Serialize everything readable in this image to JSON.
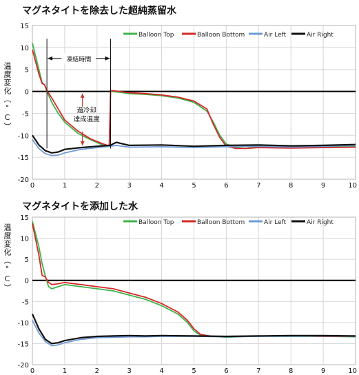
{
  "chart_data": [
    {
      "type": "line",
      "title": "マグネタイトを除去した超純蒸留水",
      "ylabel": "温度変化（°C）",
      "xlabel": "",
      "xlim": [
        0,
        10
      ],
      "ylim": [
        -20,
        15
      ],
      "xticks": [
        "0",
        "1",
        "2",
        "3",
        "4",
        "5",
        "6",
        "7",
        "8",
        "9",
        "10"
      ],
      "yticks": [
        "15",
        "10",
        "5",
        "0",
        "-5",
        "-10",
        "-15",
        "-20"
      ],
      "grid": true,
      "legend_position": "top-right",
      "annotations": {
        "freeze_span_label": "凍結時間",
        "supercool_label": "過冷却\n達成温度"
      },
      "series": [
        {
          "name": "Balloon Top",
          "color": "#3cb44b",
          "x": [
            0,
            0.2,
            0.3,
            0.38,
            0.45,
            0.6,
            0.8,
            1.0,
            1.4,
            1.8,
            2.2,
            2.38,
            2.42,
            2.7,
            3.0,
            3.5,
            4.0,
            4.5,
            5.0,
            5.4,
            5.6,
            5.8,
            6.0,
            6.3,
            6.6,
            7.0,
            8.0,
            9.0,
            10.0
          ],
          "y": [
            11,
            5,
            2,
            1.5,
            0,
            -2.5,
            -5,
            -7,
            -9.5,
            -11,
            -12.3,
            -12.5,
            0,
            -0.2,
            -0.5,
            -0.7,
            -1,
            -1.5,
            -2.5,
            -4.5,
            -7,
            -10,
            -12,
            -12.8,
            -13,
            -12.5,
            -12.6,
            -12.7,
            -12.6
          ]
        },
        {
          "name": "Balloon Bottom",
          "color": "#d62728",
          "x": [
            0,
            0.2,
            0.3,
            0.38,
            0.45,
            0.6,
            0.8,
            1.0,
            1.4,
            1.8,
            2.2,
            2.38,
            2.42,
            2.7,
            3.0,
            3.5,
            4.0,
            4.5,
            5.0,
            5.4,
            5.6,
            5.8,
            6.0,
            6.3,
            6.6,
            7.0,
            8.0,
            9.0,
            10.0
          ],
          "y": [
            9.5,
            4,
            1.8,
            1.5,
            0.2,
            -1.5,
            -4,
            -6.5,
            -9,
            -10.8,
            -12,
            -12.4,
            0.2,
            0,
            -0.3,
            -0.5,
            -0.8,
            -1.3,
            -2.2,
            -4,
            -7.5,
            -10.5,
            -12.5,
            -13,
            -13,
            -12.8,
            -12.9,
            -12.8,
            -12.7
          ]
        },
        {
          "name": "Air Left",
          "color": "#6f9ad6",
          "x": [
            0,
            0.2,
            0.4,
            0.6,
            0.8,
            1.0,
            1.5,
            2.0,
            2.4,
            2.6,
            3.0,
            4.0,
            5.0,
            6.0,
            7.0,
            8.0,
            9.0,
            10.0
          ],
          "y": [
            -11,
            -13,
            -14.2,
            -14.6,
            -14.5,
            -14,
            -13.2,
            -12.8,
            -12.5,
            -12.3,
            -12.7,
            -12.6,
            -12.8,
            -12.6,
            -12.5,
            -12.7,
            -12.5,
            -12.3
          ]
        },
        {
          "name": "Air Right",
          "color": "#111111",
          "x": [
            0,
            0.2,
            0.4,
            0.6,
            0.8,
            1.0,
            1.5,
            2.0,
            2.4,
            2.6,
            3.0,
            4.0,
            5.0,
            6.0,
            7.0,
            8.0,
            9.0,
            10.0
          ],
          "y": [
            -10,
            -12.2,
            -13.5,
            -14,
            -13.8,
            -13.2,
            -12.8,
            -12.5,
            -12.3,
            -11.6,
            -12.3,
            -12.2,
            -12.5,
            -12.3,
            -12.2,
            -12.4,
            -12.3,
            -12.1
          ]
        }
      ]
    },
    {
      "type": "line",
      "title": "マグネタイトを添加した水",
      "ylabel": "温度変化（°C）",
      "xlabel": "",
      "xlim": [
        0,
        10
      ],
      "ylim": [
        -20,
        15
      ],
      "xticks": [
        "0",
        "1",
        "2",
        "3",
        "4",
        "5",
        "6",
        "7",
        "8",
        "9",
        "10"
      ],
      "yticks": [
        "15",
        "10",
        "5",
        "0",
        "-5",
        "-10",
        "-15",
        "-20"
      ],
      "grid": true,
      "legend_position": "top-right",
      "series": [
        {
          "name": "Balloon Top",
          "color": "#3cb44b",
          "x": [
            0,
            0.2,
            0.3,
            0.4,
            0.5,
            0.6,
            0.8,
            1.0,
            1.5,
            2.0,
            2.5,
            3.0,
            3.5,
            4.0,
            4.5,
            4.8,
            5.0,
            5.2,
            5.4,
            5.6,
            6.0,
            7.0,
            8.0,
            9.0,
            10.0
          ],
          "y": [
            14,
            8,
            4,
            1,
            -1.5,
            -2,
            -1.5,
            -1,
            -1.5,
            -2,
            -2.5,
            -3.5,
            -4.5,
            -6,
            -8,
            -10,
            -12,
            -13,
            -13.2,
            -13.3,
            -13.5,
            -13.2,
            -13.3,
            -13.3,
            -13.4
          ]
        },
        {
          "name": "Balloon Bottom",
          "color": "#d62728",
          "x": [
            0,
            0.2,
            0.3,
            0.4,
            0.5,
            0.6,
            0.8,
            1.0,
            1.5,
            2.0,
            2.5,
            3.0,
            3.5,
            4.0,
            4.5,
            4.8,
            5.0,
            5.2,
            5.4,
            5.6,
            6.0,
            7.0,
            8.0,
            9.0,
            10.0
          ],
          "y": [
            13.5,
            6,
            1.2,
            0.8,
            -0.5,
            -1,
            -0.8,
            -0.5,
            -1,
            -1.5,
            -2,
            -3,
            -4,
            -5.5,
            -7.5,
            -9.5,
            -11.5,
            -12.8,
            -13.1,
            -13.3,
            -13.4,
            -13.2,
            -13.2,
            -13.3,
            -13.3
          ]
        },
        {
          "name": "Air Left",
          "color": "#6f9ad6",
          "x": [
            0,
            0.2,
            0.4,
            0.6,
            0.8,
            1.0,
            1.5,
            2.0,
            2.5,
            3.0,
            3.5,
            4.0,
            5.0,
            6.0,
            7.0,
            8.0,
            9.0,
            10.0
          ],
          "y": [
            -9.5,
            -12.5,
            -14.5,
            -15.5,
            -15.3,
            -14.8,
            -14,
            -13.6,
            -13.5,
            -13.4,
            -13.4,
            -13.3,
            -13.3,
            -13.4,
            -13.3,
            -13.3,
            -13.2,
            -13.3
          ]
        },
        {
          "name": "Air Right",
          "color": "#111111",
          "x": [
            0,
            0.2,
            0.4,
            0.6,
            0.8,
            1.0,
            1.5,
            2.0,
            2.5,
            3.0,
            3.5,
            4.0,
            5.0,
            6.0,
            7.0,
            8.0,
            9.0,
            10.0
          ],
          "y": [
            -8,
            -11.5,
            -14,
            -15,
            -14.8,
            -14.3,
            -13.6,
            -13.3,
            -13.2,
            -13.1,
            -13.2,
            -13.1,
            -13.2,
            -13.3,
            -13.2,
            -13.1,
            -13.1,
            -13.2
          ]
        }
      ]
    }
  ]
}
